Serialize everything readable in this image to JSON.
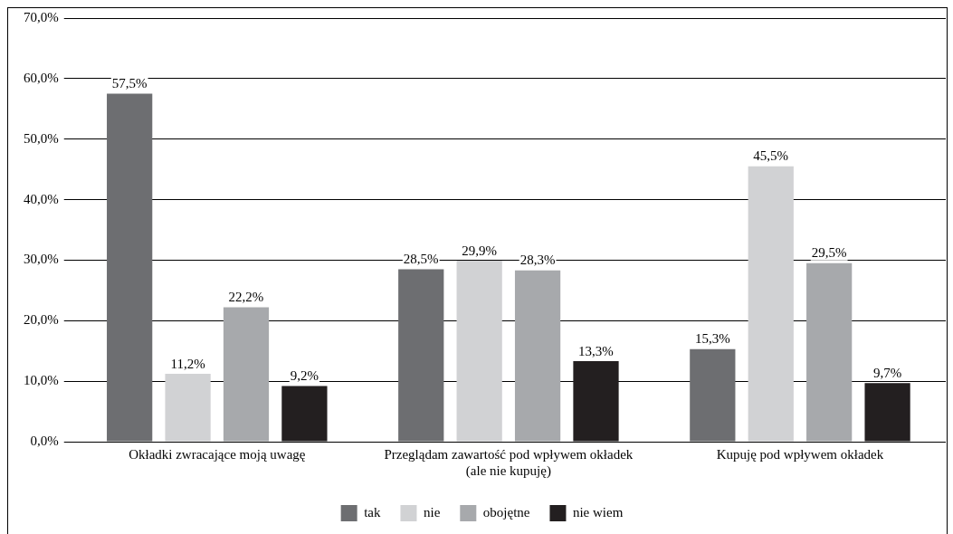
{
  "chart_data": {
    "type": "bar",
    "categories": [
      "Okładki zwracające moją uwagę",
      [
        "Przeglądam zawartość pod wpływem okładek",
        "(ale nie kupuję)"
      ],
      "Kupuję pod wpływem okładek"
    ],
    "series": [
      {
        "name": "tak",
        "color": "#6d6e71",
        "values": [
          57.5,
          28.5,
          15.3
        ],
        "value_labels": [
          "57,5%",
          "28,5%",
          "15,3%"
        ]
      },
      {
        "name": "nie",
        "color": "#d1d2d4",
        "values": [
          11.2,
          29.9,
          45.5
        ],
        "value_labels": [
          "11,2%",
          "29,9%",
          "45,5%"
        ]
      },
      {
        "name": "obojętne",
        "color": "#a7a9ac",
        "values": [
          22.2,
          28.3,
          29.5
        ],
        "value_labels": [
          "22,2%",
          "28,3%",
          "29,5%"
        ]
      },
      {
        "name": "nie wiem",
        "color": "#231f20",
        "values": [
          9.2,
          13.3,
          9.7
        ],
        "value_labels": [
          "9,2%",
          "13,3%",
          "9,7%"
        ]
      }
    ],
    "ylim": [
      0,
      70
    ],
    "yticks": [
      {
        "value": 0,
        "label": "0,0%"
      },
      {
        "value": 10,
        "label": "10,0%"
      },
      {
        "value": 20,
        "label": "20,0%"
      },
      {
        "value": 30,
        "label": "30,0%"
      },
      {
        "value": 40,
        "label": "40,0%"
      },
      {
        "value": 50,
        "label": "50,0%"
      },
      {
        "value": 60,
        "label": "60,0%"
      },
      {
        "value": 70,
        "label": "70,0%"
      }
    ],
    "grid": "y",
    "legend": "bottom"
  }
}
